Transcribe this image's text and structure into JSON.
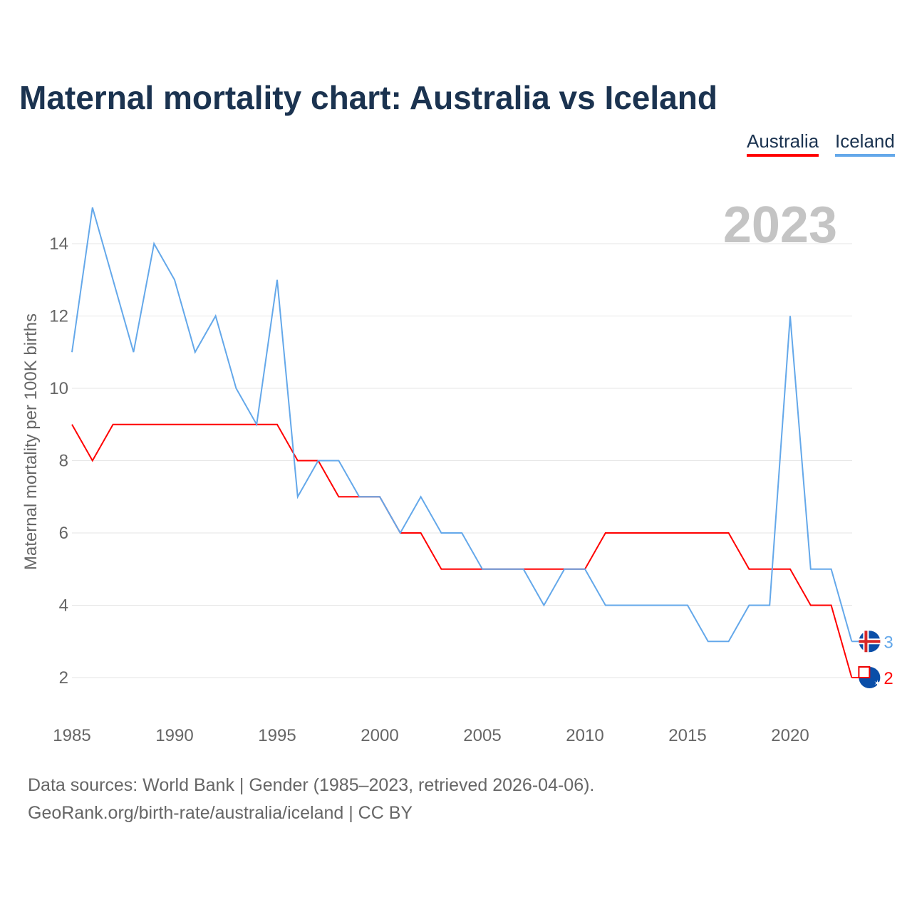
{
  "title": "Maternal mortality chart: Australia vs Iceland",
  "legend": [
    "Australia",
    "Iceland"
  ],
  "footer": {
    "line1": "Data sources: World Bank | Gender (1985–2023, retrieved 2026-04-06).",
    "line2": "GeoRank.org/birth-rate/australia/iceland | CC BY"
  },
  "chart_data": {
    "type": "line",
    "title": "Maternal mortality chart: Australia vs Iceland",
    "xlabel": "",
    "ylabel": "Maternal mortality per 100K births",
    "year_label": "2023",
    "x": [
      1985,
      1986,
      1987,
      1988,
      1989,
      1990,
      1991,
      1992,
      1993,
      1994,
      1995,
      1996,
      1997,
      1998,
      1999,
      2000,
      2001,
      2002,
      2003,
      2004,
      2005,
      2006,
      2007,
      2008,
      2009,
      2010,
      2011,
      2012,
      2013,
      2014,
      2015,
      2016,
      2017,
      2018,
      2019,
      2020,
      2021,
      2022,
      2023
    ],
    "xticks": [
      1985,
      1990,
      1995,
      2000,
      2005,
      2010,
      2015,
      2020
    ],
    "yticks": [
      2,
      4,
      6,
      8,
      10,
      12,
      14
    ],
    "ylim": [
      1,
      15.5
    ],
    "series": [
      {
        "name": "Australia",
        "color": "#ff0000",
        "end_label": "2",
        "values": [
          9,
          8,
          9,
          9,
          9,
          9,
          9,
          9,
          9,
          9,
          9,
          8,
          8,
          7,
          7,
          7,
          6,
          6,
          5,
          5,
          5,
          5,
          5,
          5,
          5,
          5,
          6,
          6,
          6,
          6,
          6,
          6,
          6,
          5,
          5,
          5,
          4,
          4,
          2
        ]
      },
      {
        "name": "Iceland",
        "color": "#64a8ea",
        "end_label": "3",
        "values": [
          11,
          15,
          13,
          11,
          14,
          13,
          11,
          12,
          10,
          9,
          13,
          7,
          8,
          8,
          7,
          7,
          6,
          7,
          6,
          6,
          5,
          5,
          5,
          4,
          5,
          5,
          4,
          4,
          4,
          4,
          4,
          3,
          3,
          4,
          4,
          12,
          5,
          5,
          3
        ]
      }
    ]
  }
}
